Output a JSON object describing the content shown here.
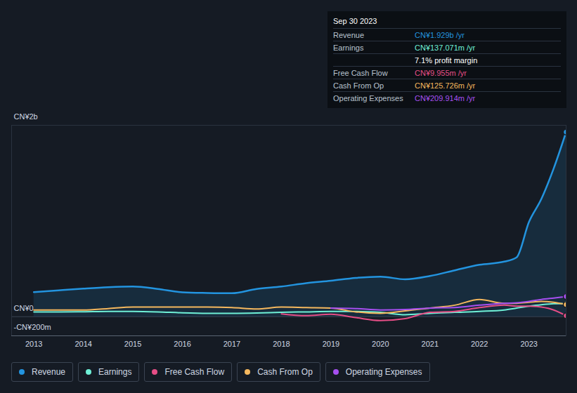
{
  "chart_data": {
    "type": "line",
    "x": [
      2013,
      2013.5,
      2014,
      2014.5,
      2015,
      2015.5,
      2016,
      2016.5,
      2017,
      2017.5,
      2018,
      2018.5,
      2019,
      2019.5,
      2020,
      2020.5,
      2021,
      2021.5,
      2022,
      2022.5,
      2022.75,
      2023,
      2023.25,
      2023.5,
      2023.75
    ],
    "xlim": [
      2012.55,
      2023.75
    ],
    "xticks": [
      2013,
      2014,
      2015,
      2016,
      2017,
      2018,
      2019,
      2020,
      2021,
      2022,
      2023
    ],
    "ylim": [
      -200,
      2000
    ],
    "yticks": [
      {
        "value": 2000,
        "label": "CN¥2b"
      },
      {
        "value": 0,
        "label": "CN¥0"
      },
      {
        "value": -200,
        "label": "-CN¥200m"
      }
    ],
    "grid": true,
    "legend": "bottom",
    "series": [
      {
        "name": "Revenue",
        "color": "#2394df",
        "marker": "dot",
        "values": [
          256,
          275,
          293,
          308,
          315,
          290,
          255,
          248,
          245,
          290,
          315,
          350,
          375,
          405,
          418,
          390,
          425,
          484,
          542,
          575,
          620,
          990,
          1230,
          1550,
          1929
        ]
      },
      {
        "name": "Earnings",
        "color": "#6ff0d6",
        "marker": "dot",
        "values": [
          50,
          50,
          52,
          55,
          55,
          50,
          40,
          35,
          35,
          38,
          45,
          50,
          55,
          55,
          45,
          20,
          35,
          45,
          55,
          70,
          90,
          110,
          125,
          135,
          137.071
        ]
      },
      {
        "name": "Free Cash Flow",
        "color": "#e64e86",
        "marker": "dot",
        "values": [
          null,
          null,
          null,
          null,
          null,
          null,
          null,
          null,
          null,
          null,
          30,
          10,
          25,
          -10,
          -40,
          -20,
          45,
          55,
          95,
          120,
          110,
          110,
          100,
          70,
          9.955
        ]
      },
      {
        "name": "Cash From Op",
        "color": "#f5b85e",
        "marker": "dot",
        "values": [
          70,
          70,
          70,
          85,
          100,
          100,
          100,
          100,
          95,
          80,
          100,
          95,
          90,
          50,
          35,
          60,
          90,
          120,
          180,
          140,
          140,
          150,
          160,
          150,
          125.726
        ]
      },
      {
        "name": "Operating Expenses",
        "color": "#a64ff0",
        "marker": "dot",
        "values": [
          null,
          null,
          null,
          null,
          null,
          null,
          null,
          null,
          null,
          null,
          null,
          null,
          90,
          85,
          70,
          75,
          90,
          95,
          120,
          140,
          145,
          160,
          180,
          195,
          209.914
        ]
      }
    ],
    "annotations": {
      "title": "Sep 30 2023",
      "rows": [
        {
          "label": "Revenue",
          "text": "CN¥1.929b /yr"
        },
        {
          "label": "Earnings",
          "text": "CN¥137.071m /yr"
        },
        {
          "text": "7.1% profit margin"
        },
        {
          "label": "Free Cash Flow",
          "text": "CN¥9.955m /yr"
        },
        {
          "label": "Cash From Op",
          "text": "CN¥125.726m /yr"
        },
        {
          "label": "Operating Expenses",
          "text": "CN¥209.914m /yr"
        }
      ]
    }
  }
}
